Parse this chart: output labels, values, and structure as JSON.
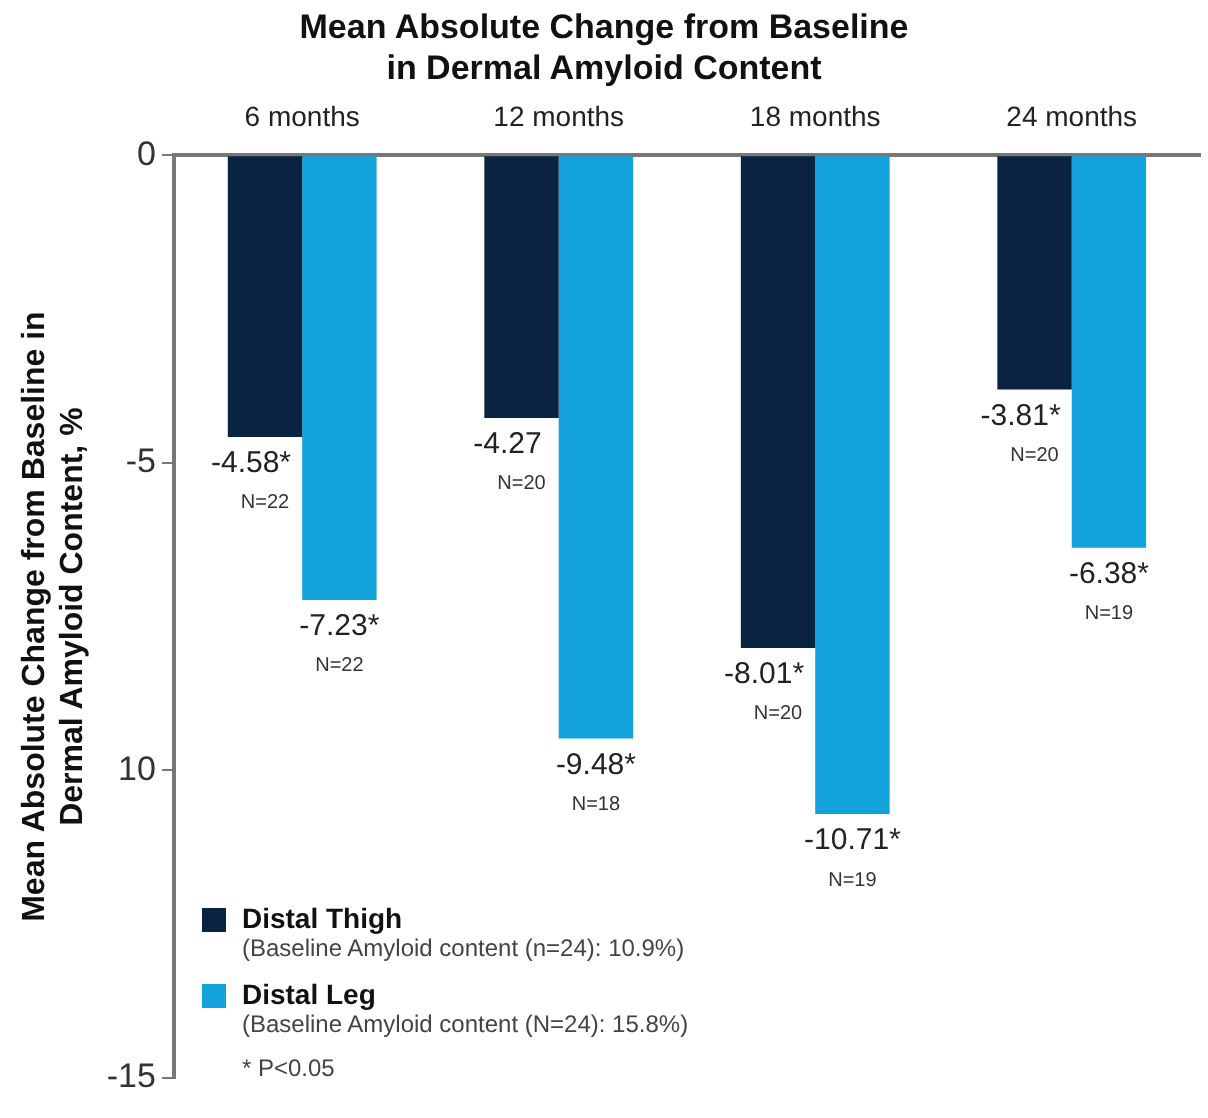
{
  "chart_data": {
    "type": "bar",
    "title": "Mean Absolute Change from Baseline\nin Dermal Amyloid Content",
    "ylabel": "Mean Absolute Change from Baseline in\nDermal Amyloid Content, %",
    "categories": [
      "6 months",
      "12 months",
      "18 months",
      "24 months"
    ],
    "series": [
      {
        "name": "Distal Thigh",
        "color": "#0a2342",
        "values": [
          -4.58,
          -4.27,
          -8.01,
          -3.81
        ],
        "value_labels": [
          "-4.58*",
          "-4.27",
          "-8.01*",
          "-3.81*"
        ]
      },
      {
        "name": "Distal Leg",
        "color": "#12a3dc",
        "values": [
          -7.23,
          -9.48,
          -10.71,
          -6.38
        ],
        "value_labels": [
          "-7.23*",
          "-9.48*",
          "-10.71*",
          "-6.38*"
        ]
      }
    ],
    "ylim": [
      -15,
      0
    ],
    "yticks": [
      0,
      -5,
      {
        "value": -10,
        "label": "10"
      },
      -15
    ],
    "grid": false,
    "legend": "bottom left",
    "annotations": [
      "(Baseline Amyloid content (n=24): 10.9%)",
      "(Baseline Amyloid content (N=24): 15.8%)",
      "* P<0.05",
      {
        "text": "N=22",
        "x": "6 months",
        "y": -4.58
      },
      {
        "text": "N=22",
        "x": "6 months",
        "y": -7.23
      },
      {
        "text": "N=20",
        "x": "12 months",
        "y": -4.27
      },
      {
        "text": "N=18",
        "x": "12 months",
        "y": -9.48
      },
      {
        "text": "N=20",
        "x": "18 months",
        "y": -8.01
      },
      {
        "text": "N=19",
        "x": "18 months",
        "y": -10.71
      },
      {
        "text": "N=20",
        "x": "24 months",
        "y": -3.81
      },
      {
        "text": "N=19",
        "x": "24 months",
        "y": -6.38
      }
    ]
  }
}
